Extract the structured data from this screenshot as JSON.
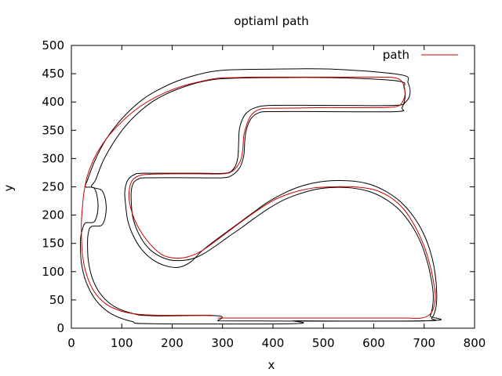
{
  "chart_data": {
    "type": "line",
    "title": "optiaml path",
    "xlabel": "x",
    "ylabel": "y",
    "xlim": [
      0,
      800
    ],
    "ylim": [
      0,
      500
    ],
    "xticks": [
      0,
      100,
      200,
      300,
      400,
      500,
      600,
      700,
      800
    ],
    "yticks": [
      0,
      50,
      100,
      150,
      200,
      250,
      300,
      350,
      400,
      450,
      500
    ],
    "grid": false,
    "legend": {
      "position": "top-right",
      "entries": [
        "path"
      ]
    },
    "series": [
      {
        "name": "path",
        "color": "#cc0000",
        "points": [
          [
            290,
            18
          ],
          [
            470,
            18
          ],
          [
            600,
            18
          ],
          [
            660,
            18
          ],
          [
            695,
            18
          ],
          [
            712,
            25
          ],
          [
            720,
            40
          ],
          [
            722,
            60
          ],
          [
            719,
            80
          ],
          [
            712,
            110
          ],
          [
            700,
            145
          ],
          [
            682,
            180
          ],
          [
            660,
            210
          ],
          [
            632,
            232
          ],
          [
            600,
            245
          ],
          [
            560,
            250
          ],
          [
            520,
            250
          ],
          [
            480,
            248
          ],
          [
            440,
            240
          ],
          [
            405,
            228
          ],
          [
            375,
            212
          ],
          [
            340,
            190
          ],
          [
            310,
            170
          ],
          [
            280,
            150
          ],
          [
            255,
            135
          ],
          [
            230,
            126
          ],
          [
            205,
            124
          ],
          [
            180,
            130
          ],
          [
            155,
            150
          ],
          [
            135,
            175
          ],
          [
            122,
            200
          ],
          [
            115,
            225
          ],
          [
            115,
            245
          ],
          [
            120,
            260
          ],
          [
            130,
            268
          ],
          [
            150,
            272
          ],
          [
            200,
            273
          ],
          [
            250,
            273
          ],
          [
            300,
            273
          ],
          [
            320,
            278
          ],
          [
            335,
            295
          ],
          [
            340,
            315
          ],
          [
            342,
            340
          ],
          [
            348,
            360
          ],
          [
            358,
            378
          ],
          [
            378,
            388
          ],
          [
            420,
            389
          ],
          [
            500,
            390
          ],
          [
            600,
            390
          ],
          [
            645,
            392
          ],
          [
            658,
            402
          ],
          [
            662,
            418
          ],
          [
            656,
            436
          ],
          [
            640,
            443
          ],
          [
            600,
            444
          ],
          [
            500,
            444
          ],
          [
            420,
            444
          ],
          [
            360,
            444
          ],
          [
            320,
            443
          ],
          [
            290,
            442
          ],
          [
            255,
            436
          ],
          [
            220,
            428
          ],
          [
            190,
            418
          ],
          [
            160,
            405
          ],
          [
            130,
            388
          ],
          [
            100,
            365
          ],
          [
            72,
            338
          ],
          [
            48,
            305
          ],
          [
            32,
            270
          ],
          [
            25,
            240
          ],
          [
            22,
            215
          ],
          [
            20,
            190
          ],
          [
            20,
            165
          ],
          [
            22,
            130
          ],
          [
            30,
            95
          ],
          [
            45,
            65
          ],
          [
            70,
            42
          ],
          [
            100,
            30
          ],
          [
            130,
            25
          ],
          [
            170,
            23
          ],
          [
            210,
            23
          ],
          [
            250,
            23
          ],
          [
            280,
            23
          ]
        ]
      }
    ],
    "track_outer": [
      [
        440,
        13
      ],
      [
        700,
        13
      ],
      [
        715,
        18
      ],
      [
        723,
        35
      ],
      [
        725,
        60
      ],
      [
        722,
        95
      ],
      [
        714,
        130
      ],
      [
        700,
        165
      ],
      [
        680,
        196
      ],
      [
        655,
        222
      ],
      [
        626,
        241
      ],
      [
        594,
        254
      ],
      [
        560,
        260
      ],
      [
        524,
        261
      ],
      [
        488,
        258
      ],
      [
        452,
        250
      ],
      [
        418,
        237
      ],
      [
        388,
        222
      ],
      [
        360,
        204
      ],
      [
        334,
        187
      ],
      [
        308,
        170
      ],
      [
        282,
        153
      ],
      [
        257,
        135
      ],
      [
        238,
        118
      ],
      [
        215,
        108
      ],
      [
        188,
        110
      ],
      [
        160,
        122
      ],
      [
        138,
        141
      ],
      [
        122,
        165
      ],
      [
        112,
        190
      ],
      [
        108,
        215
      ],
      [
        106,
        242
      ],
      [
        112,
        262
      ],
      [
        126,
        272
      ],
      [
        145,
        274
      ],
      [
        250,
        274
      ],
      [
        305,
        274
      ],
      [
        322,
        282
      ],
      [
        330,
        300
      ],
      [
        332,
        330
      ],
      [
        334,
        355
      ],
      [
        345,
        378
      ],
      [
        365,
        390
      ],
      [
        400,
        394
      ],
      [
        500,
        394
      ],
      [
        640,
        394
      ],
      [
        663,
        400
      ],
      [
        672,
        415
      ],
      [
        668,
        434
      ],
      [
        654,
        448
      ],
      [
        520,
        458
      ],
      [
        380,
        458
      ],
      [
        320,
        457
      ],
      [
        280,
        454
      ],
      [
        245,
        447
      ],
      [
        210,
        437
      ],
      [
        180,
        425
      ],
      [
        150,
        410
      ],
      [
        122,
        390
      ],
      [
        92,
        362
      ],
      [
        66,
        330
      ],
      [
        46,
        295
      ],
      [
        32,
        262
      ],
      [
        28,
        250
      ],
      [
        45,
        248
      ],
      [
        52,
        228
      ],
      [
        52,
        205
      ],
      [
        45,
        188
      ],
      [
        28,
        186
      ],
      [
        22,
        175
      ],
      [
        18,
        155
      ],
      [
        20,
        115
      ],
      [
        30,
        80
      ],
      [
        50,
        48
      ],
      [
        80,
        25
      ],
      [
        120,
        12
      ],
      [
        160,
        8
      ],
      [
        440,
        8
      ],
      [
        440,
        13
      ]
    ],
    "track_inner": [
      [
        290,
        13
      ],
      [
        700,
        13
      ],
      [
        712,
        22
      ],
      [
        717,
        40
      ],
      [
        718,
        60
      ],
      [
        715,
        82
      ],
      [
        707,
        115
      ],
      [
        694,
        150
      ],
      [
        675,
        182
      ],
      [
        650,
        210
      ],
      [
        620,
        230
      ],
      [
        590,
        242
      ],
      [
        556,
        248
      ],
      [
        522,
        249
      ],
      [
        488,
        246
      ],
      [
        454,
        238
      ],
      [
        422,
        227
      ],
      [
        392,
        212
      ],
      [
        364,
        195
      ],
      [
        338,
        178
      ],
      [
        312,
        162
      ],
      [
        287,
        146
      ],
      [
        263,
        132
      ],
      [
        244,
        124
      ],
      [
        222,
        120
      ],
      [
        194,
        121
      ],
      [
        166,
        132
      ],
      [
        146,
        149
      ],
      [
        131,
        172
      ],
      [
        122,
        196
      ],
      [
        119,
        220
      ],
      [
        119,
        244
      ],
      [
        124,
        258
      ],
      [
        134,
        264
      ],
      [
        148,
        266
      ],
      [
        250,
        266
      ],
      [
        300,
        266
      ],
      [
        318,
        270
      ],
      [
        334,
        284
      ],
      [
        342,
        305
      ],
      [
        344,
        330
      ],
      [
        347,
        350
      ],
      [
        356,
        370
      ],
      [
        372,
        381
      ],
      [
        400,
        383
      ],
      [
        500,
        383
      ],
      [
        645,
        383
      ],
      [
        656,
        390
      ],
      [
        662,
        408
      ],
      [
        660,
        425
      ],
      [
        648,
        437
      ],
      [
        520,
        443
      ],
      [
        380,
        443
      ],
      [
        320,
        442
      ],
      [
        284,
        440
      ],
      [
        250,
        434
      ],
      [
        218,
        425
      ],
      [
        188,
        414
      ],
      [
        160,
        400
      ],
      [
        133,
        381
      ],
      [
        106,
        356
      ],
      [
        82,
        326
      ],
      [
        62,
        294
      ],
      [
        48,
        262
      ],
      [
        40,
        250
      ],
      [
        60,
        244
      ],
      [
        68,
        225
      ],
      [
        68,
        200
      ],
      [
        60,
        182
      ],
      [
        40,
        180
      ],
      [
        34,
        170
      ],
      [
        32,
        150
      ],
      [
        34,
        117
      ],
      [
        43,
        85
      ],
      [
        60,
        58
      ],
      [
        86,
        38
      ],
      [
        122,
        26
      ],
      [
        160,
        22
      ],
      [
        290,
        22
      ],
      [
        290,
        13
      ]
    ]
  }
}
